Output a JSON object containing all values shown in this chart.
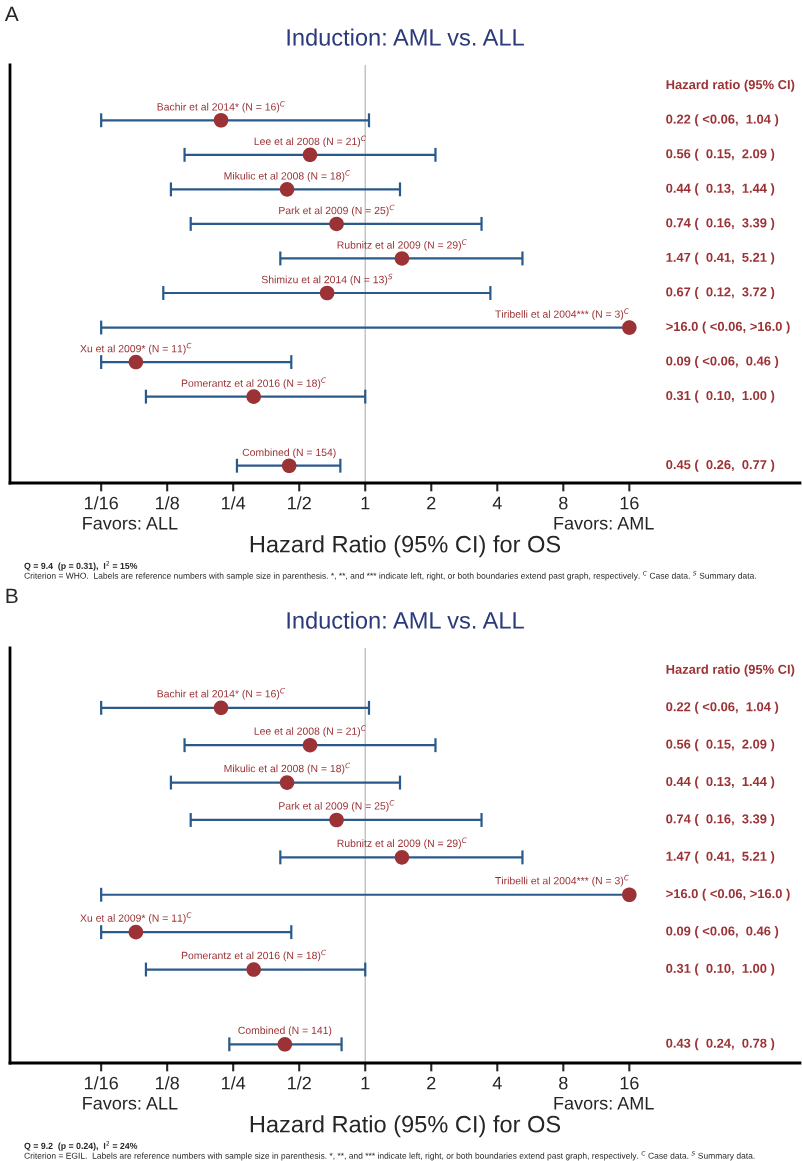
{
  "chart_data": [
    {
      "type": "scatter",
      "title": "Induction: AML vs. ALL",
      "xlabel": "Hazard Ratio (95% CI) for OS",
      "orientation": "horizontal",
      "log": "x",
      "categories": [
        "Bachir et al 2014* (N = 16)$^{C}$",
        "Lee et al 2008 (N = 21)$^{C}$",
        "Mikulic et al 2008 (N = 18)$^{C}$",
        "Park et al 2009 (N = 25)$^{C}$",
        "Rubnitz et al 2009 (N = 29)$^{C}$",
        "Shimizu et al 2014 (N = 13)$^{S}$",
        "Tiribelli et al 2004*** (N = 3)$^{C}$",
        "Xu et al 2009* (N = 11)$^{C}$",
        "Pomerantz et al 2016 (N = 18)$^{C}$",
        null,
        "Combined (N = 154)"
      ],
      "series": [
        {
          "color": "#9b3336",
          "values": [
            0.22,
            0.56,
            0.44,
            0.74,
            1.47,
            0.67,
            16,
            0.09,
            0.31,
            null,
            0.45
          ],
          "errors": [
            [
              0.0625,
              1.04
            ],
            [
              0.15,
              2.09
            ],
            [
              0.13,
              1.44
            ],
            [
              0.16,
              3.39
            ],
            [
              0.41,
              5.21
            ],
            [
              0.12,
              3.72
            ],
            [
              0.0625,
              16
            ],
            [
              0.0625,
              0.46
            ],
            [
              0.1,
              1.0
            ],
            null,
            [
              0.26,
              0.77
            ]
          ]
        }
      ],
      "xlim": [
        0.024,
        96
      ],
      "xticks": [
        {
          "value": 0.0625,
          "label": "1/16"
        },
        {
          "value": 0.125,
          "label": "1/8"
        },
        {
          "value": 0.25,
          "label": "1/4"
        },
        {
          "value": 0.5,
          "label": "1/2"
        },
        1,
        2,
        4,
        8,
        16
      ],
      "ref_lines": [
        {
          "axis": "x",
          "value": 1,
          "color": "#c0c0c0"
        }
      ],
      "marker": "circle",
      "grid": false,
      "legend": false,
      "tick_labels": "x",
      "annotations": [
        "A",
        "Hazard ratio (95% CI)",
        "Favors: ALL",
        "Favors: AML",
        "Q = 9.4  (p = 0.31),  I$^{2}$ = 15%",
        "Criterion = WHO.  Labels are reference numbers with sample size in parenthesis. *, **, and *** indicate left, right, or both boundaries extend past graph, respectively. $^{C}$ Case data. $^{S}$ Summary data.",
        "0.22 ( <0.06,  1.04 )",
        "0.56 (  0.15,  2.09 )",
        "0.44 (  0.13,  1.44 )",
        "0.74 (  0.16,  3.39 )",
        "1.47 (  0.41,  5.21 )",
        "0.67 (  0.12,  3.72 )",
        ">16.0 ( <0.06, >16.0 )",
        "0.09 ( <0.06,  0.46 )",
        "0.31 (  0.10,  1.00 )",
        "0.45 (  0.26,  0.77 )"
      ]
    },
    {
      "type": "scatter",
      "title": "Induction: AML vs. ALL",
      "xlabel": "Hazard Ratio (95% CI) for OS",
      "orientation": "horizontal",
      "log": "x",
      "categories": [
        "Bachir et al 2014* (N = 16)$^{C}$",
        "Lee et al 2008 (N = 21)$^{C}$",
        "Mikulic et al 2008 (N = 18)$^{C}$",
        "Park et al 2009 (N = 25)$^{C}$",
        "Rubnitz et al 2009 (N = 29)$^{C}$",
        "Tiribelli et al 2004*** (N = 3)$^{C}$",
        "Xu et al 2009* (N = 11)$^{C}$",
        "Pomerantz et al 2016 (N = 18)$^{C}$",
        null,
        "Combined (N = 141)"
      ],
      "series": [
        {
          "color": "#9b3336",
          "values": [
            0.22,
            0.56,
            0.44,
            0.74,
            1.47,
            16,
            0.09,
            0.31,
            null,
            0.43
          ],
          "errors": [
            [
              0.0625,
              1.04
            ],
            [
              0.15,
              2.09
            ],
            [
              0.13,
              1.44
            ],
            [
              0.16,
              3.39
            ],
            [
              0.41,
              5.21
            ],
            [
              0.0625,
              16
            ],
            [
              0.0625,
              0.46
            ],
            [
              0.1,
              1.0
            ],
            null,
            [
              0.24,
              0.78
            ]
          ]
        }
      ],
      "xlim": [
        0.024,
        96
      ],
      "xticks": [
        {
          "value": 0.0625,
          "label": "1/16"
        },
        {
          "value": 0.125,
          "label": "1/8"
        },
        {
          "value": 0.25,
          "label": "1/4"
        },
        {
          "value": 0.5,
          "label": "1/2"
        },
        1,
        2,
        4,
        8,
        16
      ],
      "ref_lines": [
        {
          "axis": "x",
          "value": 1,
          "color": "#c0c0c0"
        }
      ],
      "marker": "circle",
      "grid": false,
      "legend": false,
      "tick_labels": "x",
      "annotations": [
        "B",
        "Hazard ratio (95% CI)",
        "Favors: ALL",
        "Favors: AML",
        "Q = 9.2  (p = 0.24),  I$^{2}$ = 24%",
        "Criterion = EGIL.  Labels are reference numbers with sample size in parenthesis. *, **, and *** indicate left, right, or both boundaries extend past graph, respectively. $^{C}$ Case data. $^{S}$ Summary data.",
        "0.22 ( <0.06,  1.04 )",
        "0.56 (  0.15,  2.09 )",
        "0.44 (  0.13,  1.44 )",
        "0.74 (  0.16,  3.39 )",
        "1.47 (  0.41,  5.21 )",
        ">16.0 ( <0.06, >16.0 )",
        "0.09 ( <0.06,  0.46 )",
        "0.31 (  0.10,  1.00 )",
        "0.43 (  0.24,  0.78 )"
      ]
    }
  ]
}
